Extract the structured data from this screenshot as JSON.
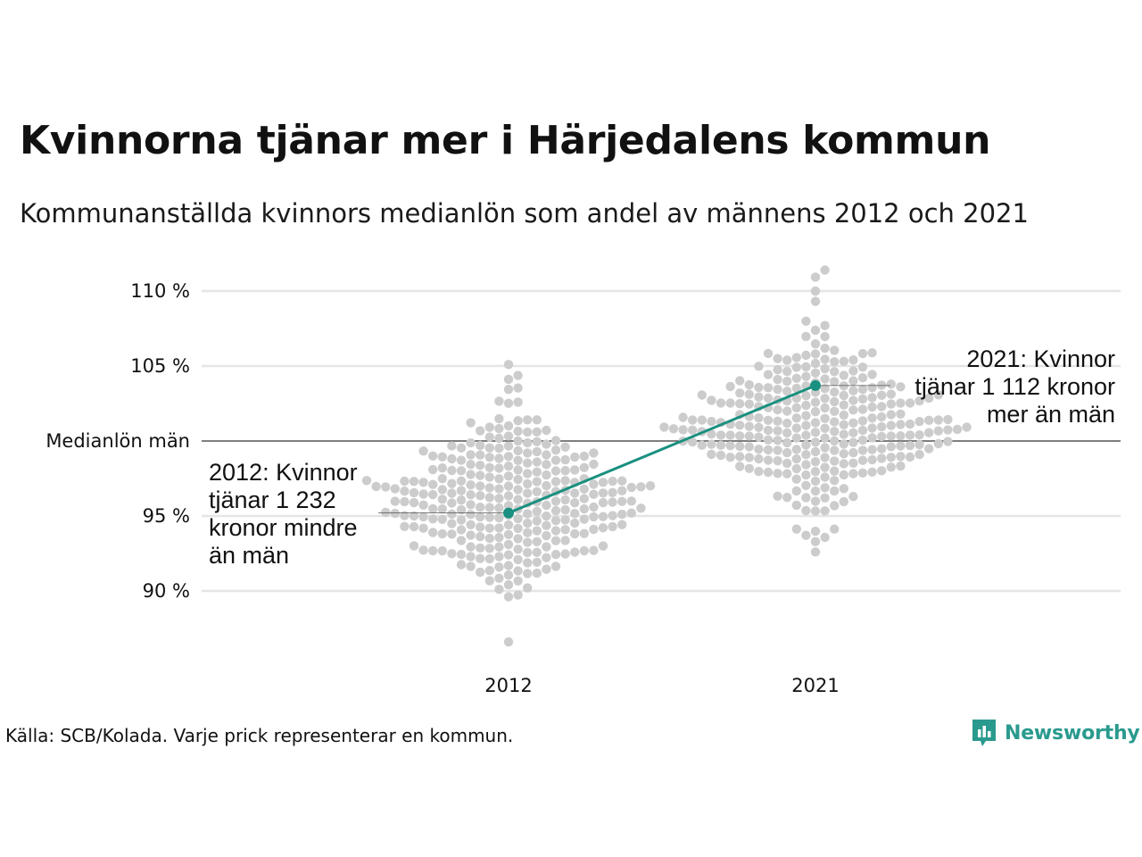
{
  "title": "Kvinnorna tjänar mer i Härjedalens kommun",
  "subtitle": "Kommunanställda kvinnors medianlön som andel av männens 2012 och 2021",
  "source": "Källa: SCB/Kolada. Varje prick representerar en kommun.",
  "brand": {
    "name": "Newsworthy",
    "icon": "newsworthy-logo-icon"
  },
  "colors": {
    "highlight": "#1a9080",
    "dots": "#cccccc",
    "grid": "#e5e5e5",
    "reference": "#333333",
    "text": "#111111",
    "brand": "#2a9a8e"
  },
  "annotations": {
    "y2012": [
      "2012: Kvinnor",
      "tjänar 1 232",
      "kronor mindre",
      "än män"
    ],
    "y2021": [
      "2021: Kvinnor",
      "tjänar 1 112 kronor",
      "mer än män"
    ]
  },
  "chart_data": {
    "type": "scatter",
    "subtype": "beeswarm",
    "title": "Kvinnorna tjänar mer i Härjedalens kommun",
    "subtitle": "Kommunanställda kvinnors medianlön som andel av männens 2012 och 2021",
    "categories": [
      "2012",
      "2021"
    ],
    "ylim": [
      86,
      112
    ],
    "yticks": [
      {
        "value": 90,
        "label": "90 %"
      },
      {
        "value": 95,
        "label": "95 %"
      },
      {
        "value": 100,
        "label": "Medianlön män"
      },
      {
        "value": 105,
        "label": "105 %"
      },
      {
        "value": 110,
        "label": "110 %"
      }
    ],
    "reference_line": 100,
    "grid": true,
    "highlight": {
      "name": "Härjedalen",
      "values": [
        95.2,
        103.7
      ]
    },
    "distributions": {
      "2012": {
        "count": 290,
        "min": 86.6,
        "max": 105.1,
        "center": 96.2,
        "spread": 2.9
      },
      "2021": {
        "count": 290,
        "min": 92.6,
        "max": 111.4,
        "center": 100.8,
        "spread": 3.0
      }
    }
  }
}
